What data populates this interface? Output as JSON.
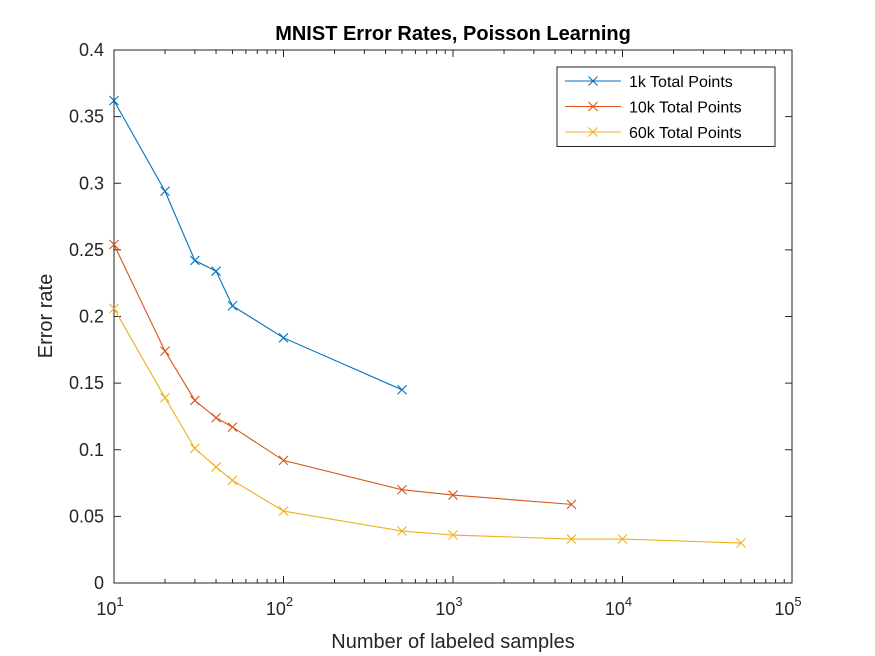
{
  "chart_data": {
    "type": "line",
    "title": "MNIST Error Rates, Poisson Learning",
    "xlabel": "Number of labeled samples",
    "ylabel": "Error rate",
    "xscale": "log",
    "xlim": [
      10,
      100000
    ],
    "ylim": [
      0,
      0.4
    ],
    "grid": false,
    "legend_position": "top-right",
    "x_ticks": [
      {
        "value": 10,
        "base": "10",
        "exp": "1"
      },
      {
        "value": 100,
        "base": "10",
        "exp": "2"
      },
      {
        "value": 1000,
        "base": "10",
        "exp": "3"
      },
      {
        "value": 10000,
        "base": "10",
        "exp": "4"
      },
      {
        "value": 100000,
        "base": "10",
        "exp": "5"
      }
    ],
    "y_ticks": [
      {
        "value": 0,
        "label": "0"
      },
      {
        "value": 0.05,
        "label": "0.05"
      },
      {
        "value": 0.1,
        "label": "0.1"
      },
      {
        "value": 0.15,
        "label": "0.15"
      },
      {
        "value": 0.2,
        "label": "0.2"
      },
      {
        "value": 0.25,
        "label": "0.25"
      },
      {
        "value": 0.3,
        "label": "0.3"
      },
      {
        "value": 0.35,
        "label": "0.35"
      },
      {
        "value": 0.4,
        "label": "0.4"
      }
    ],
    "series": [
      {
        "name": "1k Total Points",
        "color": "#0072BD",
        "marker": "x",
        "x": [
          10,
          20,
          30,
          40,
          50,
          100,
          500
        ],
        "y": [
          0.362,
          0.294,
          0.242,
          0.234,
          0.208,
          0.184,
          0.145
        ]
      },
      {
        "name": "10k Total Points",
        "color": "#D95319",
        "marker": "x",
        "x": [
          10,
          20,
          30,
          40,
          50,
          100,
          500,
          1000,
          5000
        ],
        "y": [
          0.254,
          0.174,
          0.137,
          0.124,
          0.117,
          0.092,
          0.07,
          0.066,
          0.059
        ]
      },
      {
        "name": "60k Total Points",
        "color": "#EDB120",
        "marker": "x",
        "x": [
          10,
          20,
          30,
          40,
          50,
          100,
          500,
          1000,
          5000,
          10000,
          50000
        ],
        "y": [
          0.206,
          0.139,
          0.101,
          0.087,
          0.077,
          0.054,
          0.039,
          0.036,
          0.033,
          0.033,
          0.03
        ]
      }
    ]
  }
}
